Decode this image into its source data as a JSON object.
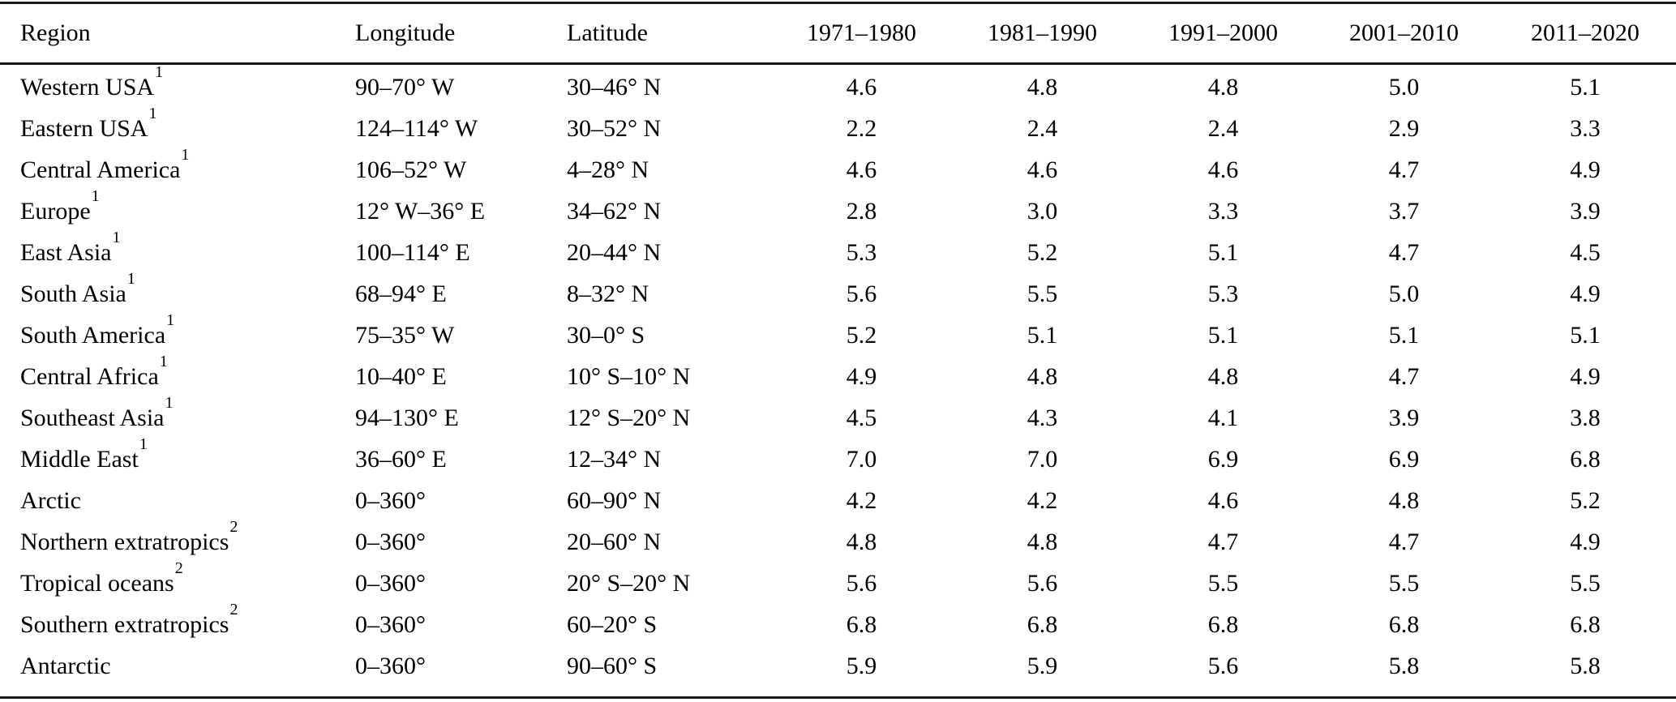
{
  "page": {
    "background": "#ffffff",
    "text_color": "#000000",
    "rule_color": "#1a1a1a"
  },
  "table": {
    "columns": [
      "Region",
      "Longitude",
      "Latitude",
      "1971–1980",
      "1981–1990",
      "1991–2000",
      "2001–2010",
      "2011–2020"
    ],
    "rows": [
      {
        "region": "Western USA",
        "footnote": "1",
        "longitude": "90–70° W",
        "latitude": "30–46° N",
        "values": [
          "4.6",
          "4.8",
          "4.8",
          "5.0",
          "5.1"
        ]
      },
      {
        "region": "Eastern USA",
        "footnote": "1",
        "longitude": "124–114° W",
        "latitude": "30–52° N",
        "values": [
          "2.2",
          "2.4",
          "2.4",
          "2.9",
          "3.3"
        ]
      },
      {
        "region": "Central America",
        "footnote": "1",
        "longitude": "106–52° W",
        "latitude": "4–28° N",
        "values": [
          "4.6",
          "4.6",
          "4.6",
          "4.7",
          "4.9"
        ]
      },
      {
        "region": "Europe",
        "footnote": "1",
        "longitude": "12° W–36° E",
        "latitude": "34–62° N",
        "values": [
          "2.8",
          "3.0",
          "3.3",
          "3.7",
          "3.9"
        ]
      },
      {
        "region": "East Asia",
        "footnote": "1",
        "longitude": "100–114° E",
        "latitude": "20–44° N",
        "values": [
          "5.3",
          "5.2",
          "5.1",
          "4.7",
          "4.5"
        ]
      },
      {
        "region": "South Asia",
        "footnote": "1",
        "longitude": "68–94° E",
        "latitude": "8–32° N",
        "values": [
          "5.6",
          "5.5",
          "5.3",
          "5.0",
          "4.9"
        ]
      },
      {
        "region": "South America",
        "footnote": "1",
        "longitude": "75–35° W",
        "latitude": "30–0° S",
        "values": [
          "5.2",
          "5.1",
          "5.1",
          "5.1",
          "5.1"
        ]
      },
      {
        "region": "Central Africa",
        "footnote": "1",
        "longitude": "10–40° E",
        "latitude": "10° S–10° N",
        "values": [
          "4.9",
          "4.8",
          "4.8",
          "4.7",
          "4.9"
        ]
      },
      {
        "region": "Southeast Asia",
        "footnote": "1",
        "longitude": "94–130° E",
        "latitude": "12° S–20° N",
        "values": [
          "4.5",
          "4.3",
          "4.1",
          "3.9",
          "3.8"
        ]
      },
      {
        "region": "Middle East",
        "footnote": "1",
        "longitude": "36–60° E",
        "latitude": "12–34° N",
        "values": [
          "7.0",
          "7.0",
          "6.9",
          "6.9",
          "6.8"
        ]
      },
      {
        "region": "Arctic",
        "footnote": "",
        "longitude": "0–360°",
        "latitude": "60–90° N",
        "values": [
          "4.2",
          "4.2",
          "4.6",
          "4.8",
          "5.2"
        ]
      },
      {
        "region": "Northern extratropics",
        "footnote": "2",
        "longitude": "0–360°",
        "latitude": "20–60° N",
        "values": [
          "4.8",
          "4.8",
          "4.7",
          "4.7",
          "4.9"
        ]
      },
      {
        "region": "Tropical oceans",
        "footnote": "2",
        "longitude": "0–360°",
        "latitude": "20° S–20° N",
        "values": [
          "5.6",
          "5.6",
          "5.5",
          "5.5",
          "5.5"
        ]
      },
      {
        "region": "Southern extratropics",
        "footnote": "2",
        "longitude": "0–360°",
        "latitude": "60–20° S",
        "values": [
          "6.8",
          "6.8",
          "6.8",
          "6.8",
          "6.8"
        ]
      },
      {
        "region": "Antarctic",
        "footnote": "",
        "longitude": "0–360°",
        "latitude": "90–60° S",
        "values": [
          "5.9",
          "5.9",
          "5.6",
          "5.8",
          "5.8"
        ]
      }
    ]
  }
}
